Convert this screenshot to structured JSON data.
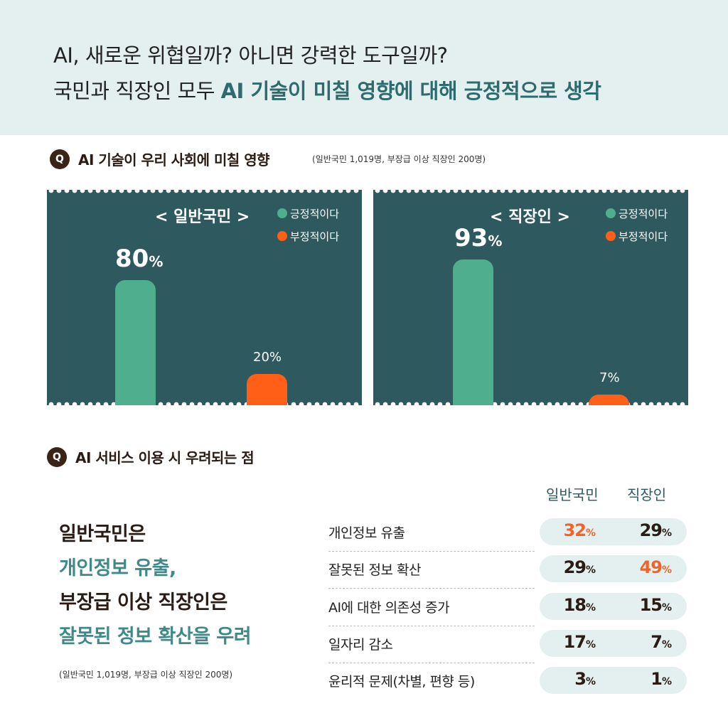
{
  "header": {
    "line1": "AI, 새로운 위협일까? 아니면 강력한 도구일까?",
    "line2_prefix": "국민과 직장인 모두 ",
    "line2_highlight": "AI 기술이 미칠 영향에 대해 긍정적으로 생각"
  },
  "q1": {
    "badge": "Q",
    "question": "AI 기술이 우리 사회에 미칠 영향",
    "note": "(일반국민 1,019명, 부장급 이상 직장인 200명)"
  },
  "q2": {
    "badge": "Q",
    "question": "AI 서비스 이용 시 우려되는 점"
  },
  "colors": {
    "positive": "#4fae8d",
    "negative": "#ff5f17",
    "panel": "#2e5a5f",
    "highlight": "#f0642a"
  },
  "chart_data": [
    {
      "type": "bar",
      "title": "< 일반국민 >",
      "categories": [
        "긍정적이다",
        "부정적이다"
      ],
      "values": [
        80,
        20
      ],
      "value_labels": [
        "80",
        "20%"
      ],
      "unit": "%",
      "ylim": [
        0,
        100
      ],
      "legend": [
        "긍정적이다",
        "부정적이다"
      ]
    },
    {
      "type": "bar",
      "title": "< 직장인 >",
      "categories": [
        "긍정적이다",
        "부정적이다"
      ],
      "values": [
        93,
        7
      ],
      "value_labels": [
        "93",
        "7%"
      ],
      "unit": "%",
      "ylim": [
        0,
        100
      ],
      "legend": [
        "긍정적이다",
        "부정적이다"
      ]
    },
    {
      "type": "table",
      "title": "AI 서비스 이용 시 우려되는 점",
      "columns": [
        "일반국민",
        "직장인"
      ],
      "rows": [
        {
          "label": "개인정보 유출",
          "general": 32,
          "worker": 29,
          "general_text": "32",
          "worker_text": "29",
          "highlight": "general"
        },
        {
          "label": "잘못된 정보 확산",
          "general": 29,
          "worker": 49,
          "general_text": "29",
          "worker_text": "49",
          "highlight": "worker"
        },
        {
          "label": "AI에 대한 의존성 증가",
          "general": 18,
          "worker": 15,
          "general_text": "18",
          "worker_text": "15",
          "highlight": ""
        },
        {
          "label": "일자리 감소",
          "general": 17,
          "worker": 7,
          "general_text": "17",
          "worker_text": "7",
          "highlight": ""
        },
        {
          "label": "윤리적 문제(차별, 편향 등)",
          "general": 3,
          "worker": 1,
          "general_text": "3",
          "worker_text": "1",
          "highlight": ""
        }
      ],
      "unit": "%"
    }
  ],
  "summary": {
    "line1": "일반국민은",
    "line2": "개인정보 유출,",
    "line3": "부장급 이상 직장인은",
    "line4": "잘못된 정보 확산을 우려"
  },
  "bottom_note": "(일반국민 1,019명, 부장급 이상 직장인 200명)"
}
